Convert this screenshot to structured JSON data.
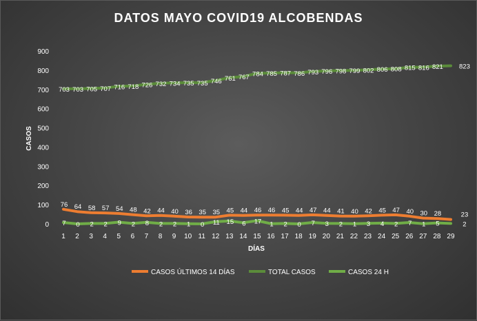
{
  "chart_data": {
    "type": "line",
    "title": "DATOS  MAYO  COVID19  ALCOBENDAS",
    "xlabel": "DÍAS",
    "ylabel": "CASOS",
    "ylim": [
      0,
      900
    ],
    "yticks": [
      "0",
      "100",
      "200",
      "300",
      "400",
      "500",
      "600",
      "700",
      "800",
      "900"
    ],
    "categories": [
      "1",
      "2",
      "3",
      "4",
      "5",
      "6",
      "7",
      "8",
      "9",
      "10",
      "11",
      "12",
      "13",
      "14",
      "15",
      "16",
      "17",
      "18",
      "19",
      "20",
      "21",
      "22",
      "23",
      "24",
      "25",
      "26",
      "27",
      "28",
      "29"
    ],
    "grid": false,
    "legend_position": "bottom",
    "series": [
      {
        "name": "CASOS ÚLTIMOS 14 DÍAS",
        "color": "#ed7d31",
        "values": [
          76,
          64,
          58,
          57,
          54,
          48,
          42,
          44,
          40,
          36,
          35,
          35,
          45,
          44,
          46,
          46,
          45,
          44,
          47,
          44,
          41,
          40,
          42,
          45,
          47,
          40,
          30,
          28,
          23
        ],
        "label_offsets": "above"
      },
      {
        "name": "TOTAL CASOS",
        "color": "#5b8c3a",
        "values": [
          703,
          703,
          705,
          707,
          716,
          718,
          726,
          732,
          734,
          735,
          735,
          746,
          761,
          767,
          784,
          785,
          787,
          786,
          793,
          796,
          798,
          799,
          802,
          806,
          808,
          815,
          816,
          821,
          823
        ],
        "label_offsets": "on"
      },
      {
        "name": "CASOS 24 H",
        "color": "#70ad47",
        "values": [
          7,
          0,
          2,
          2,
          9,
          2,
          8,
          2,
          2,
          1,
          0,
          11,
          15,
          6,
          17,
          1,
          2,
          0,
          7,
          3,
          2,
          1,
          3,
          4,
          2,
          7,
          1,
          5,
          2
        ],
        "label_offsets": "on"
      }
    ]
  }
}
